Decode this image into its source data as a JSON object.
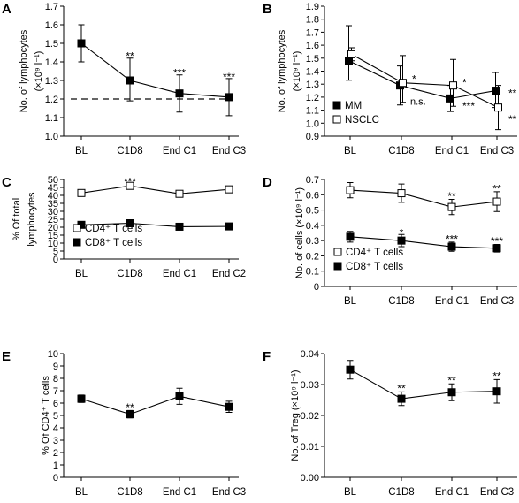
{
  "chart_data": [
    {
      "panel": "A",
      "type": "line",
      "categories": [
        "BL",
        "C1D8",
        "End C1",
        "End C3"
      ],
      "ylabel_lines": [
        "No. of lymphocytes",
        "(×10⁹ l⁻¹)"
      ],
      "ylim": [
        1.0,
        1.7
      ],
      "yticks": [
        "1.0",
        "1.1",
        "1.2",
        "1.3",
        "1.4",
        "1.5",
        "1.6",
        "1.7"
      ],
      "series": [
        {
          "marker": "filled-square",
          "values": [
            1.5,
            1.3,
            1.23,
            1.21
          ],
          "err_low": [
            1.4,
            1.19,
            1.13,
            1.11
          ],
          "err_high": [
            1.6,
            1.42,
            1.33,
            1.31
          ]
        }
      ],
      "reference_line": 1.2,
      "annotations": [
        {
          "text": "**",
          "x": 1,
          "y": 1.43
        },
        {
          "text": "***",
          "x": 2,
          "y": 1.34
        },
        {
          "text": "***",
          "x": 3,
          "y": 1.32
        }
      ]
    },
    {
      "panel": "B",
      "type": "line",
      "categories": [
        "BL",
        "C1D8",
        "End C1",
        "End C3"
      ],
      "ylabel_lines": [
        "No. of lymphocytes",
        "(×10⁹ l⁻¹)"
      ],
      "ylim": [
        0.9,
        1.9
      ],
      "yticks": [
        "0.9",
        "1.0",
        "1.1",
        "1.2",
        "1.3",
        "1.4",
        "1.5",
        "1.6",
        "1.7",
        "1.8",
        "1.9"
      ],
      "series": [
        {
          "name": "MM",
          "marker": "filled-square",
          "values": [
            1.48,
            1.29,
            1.19,
            1.25
          ],
          "err_low": [
            1.33,
            1.14,
            1.09,
            1.12
          ],
          "err_high": [
            1.75,
            1.44,
            1.29,
            1.39
          ]
        },
        {
          "name": "NSCLC",
          "marker": "open-square",
          "values": [
            1.53,
            1.31,
            1.29,
            1.12
          ],
          "err_low": [
            1.48,
            1.16,
            1.13,
            0.95
          ],
          "err_high": [
            1.58,
            1.52,
            1.49,
            1.29
          ]
        }
      ],
      "legend": "bottom-left",
      "annotations": [
        {
          "text": "*",
          "x": 1,
          "y": 1.34,
          "dx": 12
        },
        {
          "text": "n.s.",
          "x": 1,
          "y": 1.17,
          "dx": 10
        },
        {
          "text": "*",
          "x": 2,
          "y": 1.31,
          "dx": 12
        },
        {
          "text": "***",
          "x": 2,
          "y": 1.13,
          "dx": 12
        },
        {
          "text": "**",
          "x": 3,
          "y": 1.23,
          "dx": 13
        },
        {
          "text": "**",
          "x": 3,
          "y": 1.03,
          "dx": 13
        }
      ]
    },
    {
      "panel": "C",
      "type": "line",
      "categories": [
        "BL",
        "C1D8",
        "End C1",
        "End C2"
      ],
      "ylabel_lines": [
        "% Of total",
        "lymphocytes"
      ],
      "ylim": [
        0,
        50
      ],
      "yticks": [
        "0",
        "5",
        "10",
        "15",
        "20",
        "25",
        "30",
        "35",
        "40",
        "45",
        "50"
      ],
      "series": [
        {
          "name": "CD4⁺ T cells",
          "marker": "open-square",
          "values": [
            41.5,
            46,
            41,
            43.8
          ],
          "err_low": [
            40.3,
            44.5,
            39.5,
            42.2
          ],
          "err_high": [
            42.7,
            47.5,
            42.5,
            45.4
          ]
        },
        {
          "name": "CD8⁺ T cells",
          "marker": "filled-square",
          "values": [
            21.5,
            22.5,
            20.3,
            20.5
          ],
          "err_low": [
            20.5,
            21.1,
            19.3,
            19.5
          ],
          "err_high": [
            22.5,
            23.9,
            21.3,
            21.5
          ]
        }
      ],
      "legend": "bottom-left",
      "annotations": [
        {
          "text": "***",
          "x": 1,
          "y": 48.5
        }
      ]
    },
    {
      "panel": "D",
      "type": "line",
      "categories": [
        "BL",
        "C1D8",
        "End C1",
        "End C3"
      ],
      "ylabel_lines": [
        "No. of cells (×10⁹ l⁻¹)"
      ],
      "ylim": [
        0,
        0.7
      ],
      "yticks": [
        "0",
        "0.1",
        "0.2",
        "0.3",
        "0.4",
        "0.5",
        "0.6",
        "0.7"
      ],
      "series": [
        {
          "name": "CD4⁺ T cells",
          "marker": "open-square",
          "values": [
            0.63,
            0.61,
            0.52,
            0.555
          ],
          "err_low": [
            0.58,
            0.55,
            0.47,
            0.49
          ],
          "err_high": [
            0.68,
            0.67,
            0.57,
            0.62
          ]
        },
        {
          "name": "CD8⁺ T cells",
          "marker": "filled-square",
          "values": [
            0.325,
            0.3,
            0.26,
            0.25
          ],
          "err_low": [
            0.29,
            0.26,
            0.23,
            0.225
          ],
          "err_high": [
            0.36,
            0.34,
            0.29,
            0.275
          ]
        }
      ],
      "legend": "bottom-left",
      "annotations": [
        {
          "text": "**",
          "x": 2,
          "y": 0.59
        },
        {
          "text": "**",
          "x": 3,
          "y": 0.64
        },
        {
          "text": "*",
          "x": 1,
          "y": 0.35
        },
        {
          "text": "***",
          "x": 2,
          "y": 0.31
        },
        {
          "text": "***",
          "x": 3,
          "y": 0.295
        }
      ]
    },
    {
      "panel": "E",
      "type": "line",
      "categories": [
        "BL",
        "C1D8",
        "End C1",
        "End C3"
      ],
      "ylabel_lines": [
        "% Of CD4⁺ T cells"
      ],
      "ylim": [
        0,
        10
      ],
      "yticks": [
        "0",
        "1",
        "2",
        "3",
        "4",
        "5",
        "6",
        "7",
        "8",
        "9",
        "10"
      ],
      "series": [
        {
          "marker": "filled-square",
          "values": [
            6.35,
            5.1,
            6.55,
            5.7
          ],
          "err_low": [
            6.05,
            4.8,
            5.9,
            5.25
          ],
          "err_high": [
            6.65,
            5.4,
            7.2,
            6.15
          ]
        }
      ],
      "annotations": [
        {
          "text": "**",
          "x": 1,
          "y": 5.65
        }
      ]
    },
    {
      "panel": "F",
      "type": "line",
      "categories": [
        "BL",
        "C1D8",
        "End C1",
        "End C3"
      ],
      "ylabel_lines": [
        "No. of Treg (×10⁹ l⁻¹)"
      ],
      "ylim": [
        0,
        0.04
      ],
      "yticks": [
        "0.00",
        "0.01",
        "0.02",
        "0.03",
        "0.04"
      ],
      "series": [
        {
          "marker": "filled-square",
          "values": [
            0.0348,
            0.0254,
            0.0275,
            0.0278
          ],
          "err_low": [
            0.0318,
            0.0232,
            0.0248,
            0.024
          ],
          "err_high": [
            0.0378,
            0.0276,
            0.0302,
            0.0316
          ]
        }
      ],
      "annotations": [
        {
          "text": "**",
          "x": 1,
          "y": 0.0287
        },
        {
          "text": "**",
          "x": 2,
          "y": 0.0313
        },
        {
          "text": "**",
          "x": 3,
          "y": 0.0327
        }
      ]
    }
  ]
}
